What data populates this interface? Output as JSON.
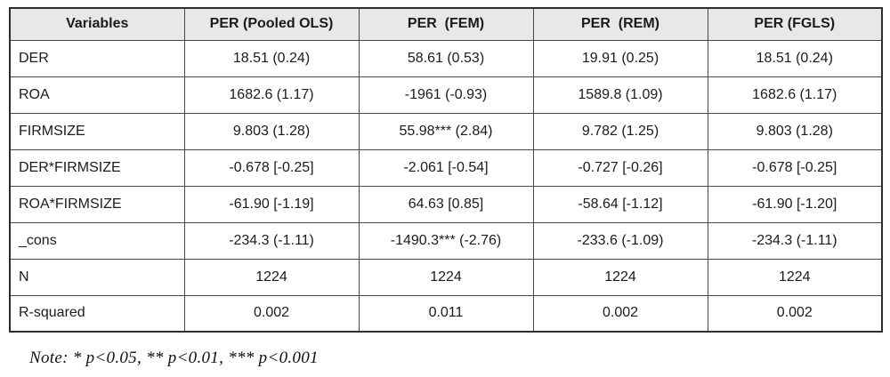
{
  "table": {
    "columns": [
      "Variables",
      "PER (Pooled OLS)",
      "PER  (FEM)",
      "PER  (REM)",
      "PER (FGLS)"
    ],
    "rows": [
      {
        "label": "DER",
        "values": [
          "18.51 (0.24)",
          "58.61 (0.53)",
          "19.91 (0.25)",
          "18.51 (0.24)"
        ]
      },
      {
        "label": "ROA",
        "values": [
          "1682.6 (1.17)",
          "-1961 (-0.93)",
          "1589.8 (1.09)",
          "1682.6 (1.17)"
        ]
      },
      {
        "label": "FIRMSIZE",
        "values": [
          "9.803 (1.28)",
          "55.98*** (2.84)",
          "9.782 (1.25)",
          "9.803 (1.28)"
        ]
      },
      {
        "label": "DER*FIRMSIZE",
        "values": [
          "-0.678 [-0.25]",
          "-2.061 [-0.54]",
          "-0.727 [-0.26]",
          "-0.678 [-0.25]"
        ]
      },
      {
        "label": "ROA*FIRMSIZE",
        "values": [
          "-61.90 [-1.19]",
          "64.63 [0.85]",
          "-58.64 [-1.12]",
          "-61.90 [-1.20]"
        ]
      },
      {
        "label": "_cons",
        "values": [
          "-234.3 (-1.11)",
          "-1490.3*** (-2.76)",
          "-233.6 (-1.09)",
          "-234.3 (-1.11)"
        ]
      },
      {
        "label": "N",
        "values": [
          "1224",
          "1224",
          "1224",
          "1224"
        ]
      },
      {
        "label": "R-squared",
        "values": [
          "0.002",
          "0.011",
          "0.002",
          "0.002"
        ]
      }
    ]
  },
  "note": "Note: * p<0.05, ** p<0.01, *** p<0.001",
  "colors": {
    "header_bg": "#e8e8e8",
    "border": "#474747",
    "outer_border": "#2e2e2e",
    "text": "#1b1b1b",
    "background": "#ffffff"
  }
}
